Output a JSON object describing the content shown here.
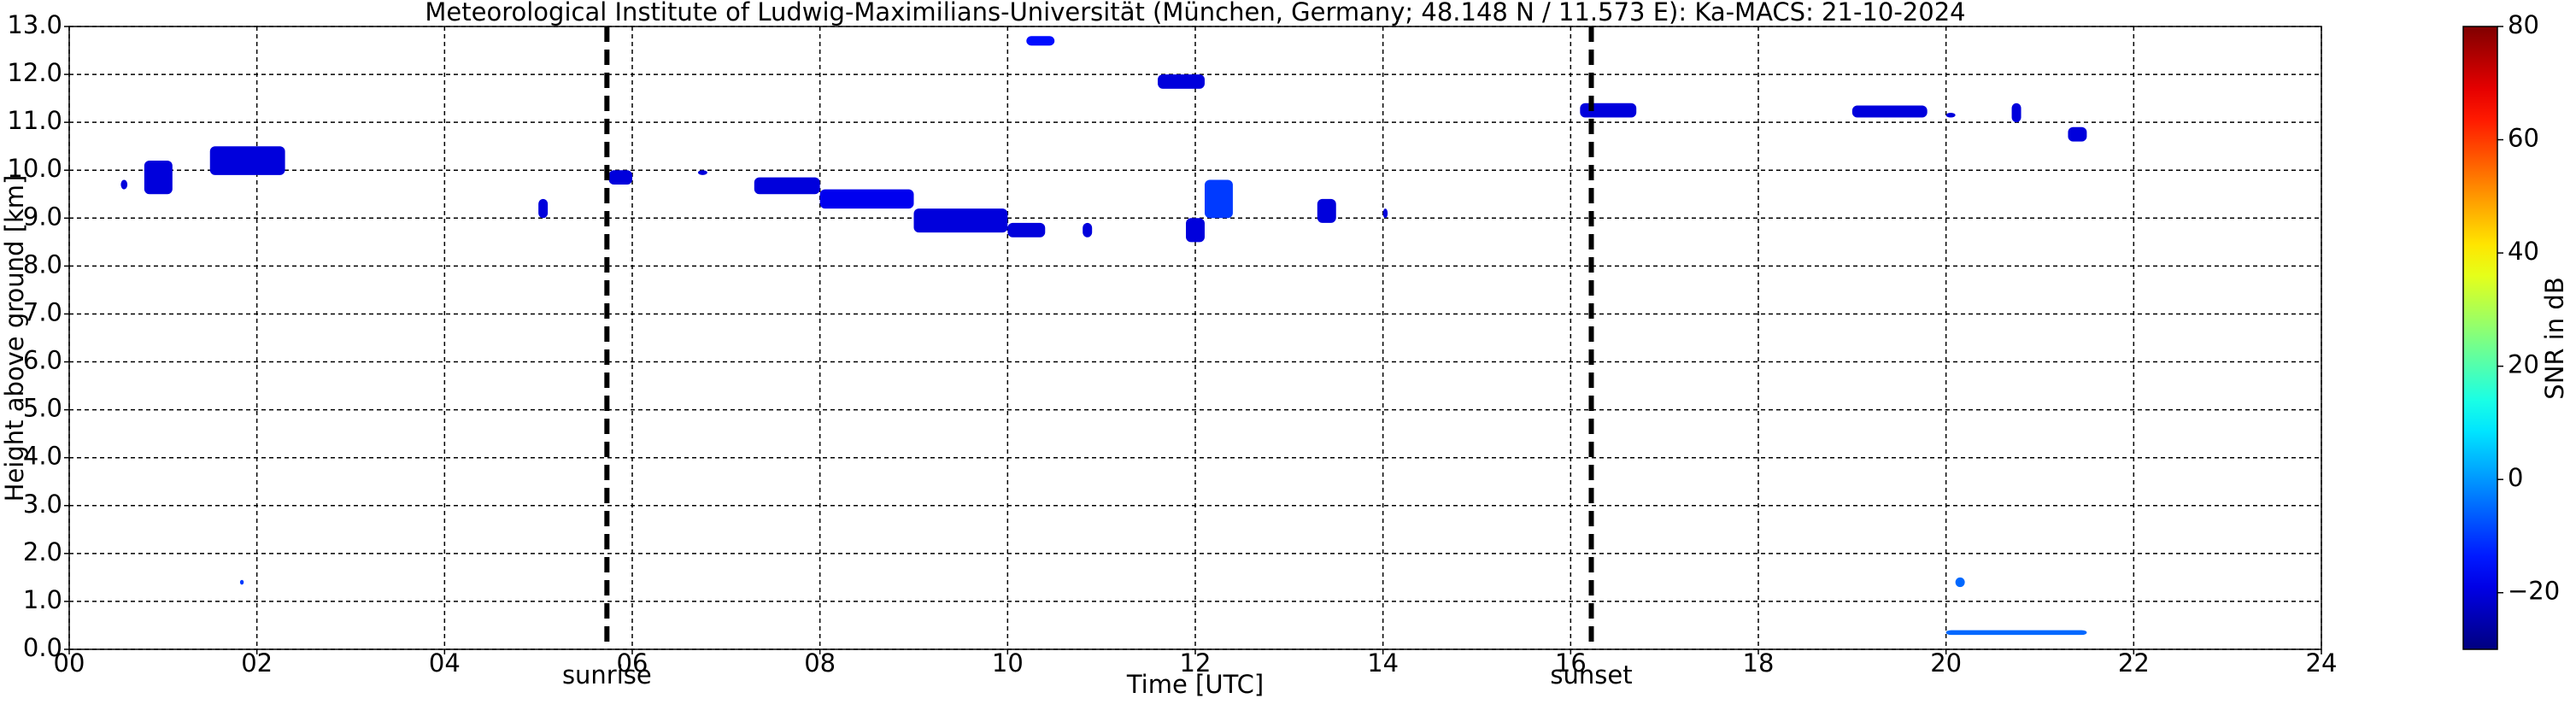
{
  "chart_data": {
    "type": "time-height",
    "title": "Meteorological Institute of Ludwig-Maximilians-Universität (München, Germany; 48.148 N / 11.573 E):    Ka-MACS: 21-10-2024",
    "x_label": "Time [UTC]",
    "y_label": "Height above ground [km]",
    "xlim": [
      0,
      24
    ],
    "xticks": [
      {
        "value": 0,
        "label": "00"
      },
      {
        "value": 2,
        "label": "02"
      },
      {
        "value": 4,
        "label": "04"
      },
      {
        "value": 6,
        "label": "06"
      },
      {
        "value": 8,
        "label": "08"
      },
      10,
      12,
      14,
      16,
      18,
      20,
      22,
      24
    ],
    "ylim": [
      0,
      13
    ],
    "yticks": [
      {
        "value": 0,
        "label": "0.0"
      },
      {
        "value": 1,
        "label": "1.0"
      },
      {
        "value": 2,
        "label": "2.0"
      },
      {
        "value": 3,
        "label": "3.0"
      },
      {
        "value": 4,
        "label": "4.0"
      },
      {
        "value": 5,
        "label": "5.0"
      },
      {
        "value": 6,
        "label": "6.0"
      },
      {
        "value": 7,
        "label": "7.0"
      },
      {
        "value": 8,
        "label": "8.0"
      },
      {
        "value": 9,
        "label": "9.0"
      },
      {
        "value": 10,
        "label": "10.0"
      },
      {
        "value": 11,
        "label": "11.0"
      },
      {
        "value": 12,
        "label": "12.0"
      },
      {
        "value": 13,
        "label": "13.0"
      }
    ],
    "grid": true,
    "colorbar": {
      "label": "SNR in dB",
      "clim": [
        -30,
        80
      ],
      "colormap": "jet",
      "ticks": [
        {
          "value": -20,
          "label": "−20"
        },
        0,
        20,
        40,
        60,
        80
      ]
    },
    "vlines": [
      {
        "x": 5.73,
        "label": "sunrise"
      },
      {
        "x": 16.22,
        "label": "sunset"
      }
    ],
    "echoes": [
      {
        "t0": 0.55,
        "t1": 0.62,
        "h0": 9.6,
        "h1": 9.8,
        "snr": -20
      },
      {
        "t0": 0.8,
        "t1": 1.1,
        "h0": 9.5,
        "h1": 10.2,
        "snr": -20
      },
      {
        "t0": 1.5,
        "t1": 2.3,
        "h0": 9.9,
        "h1": 10.5,
        "snr": -20
      },
      {
        "t0": 5.0,
        "t1": 5.1,
        "h0": 9.0,
        "h1": 9.4,
        "snr": -20
      },
      {
        "t0": 5.75,
        "t1": 6.0,
        "h0": 9.7,
        "h1": 10.0,
        "snr": -20
      },
      {
        "t0": 6.7,
        "t1": 6.8,
        "h0": 9.9,
        "h1": 10.0,
        "snr": -20
      },
      {
        "t0": 7.3,
        "t1": 8.0,
        "h0": 9.5,
        "h1": 9.85,
        "snr": -20
      },
      {
        "t0": 8.0,
        "t1": 9.0,
        "h0": 9.2,
        "h1": 9.6,
        "snr": -18
      },
      {
        "t0": 9.0,
        "t1": 10.0,
        "h0": 8.7,
        "h1": 9.2,
        "snr": -20
      },
      {
        "t0": 10.0,
        "t1": 10.4,
        "h0": 8.6,
        "h1": 8.9,
        "snr": -20
      },
      {
        "t0": 10.8,
        "t1": 10.9,
        "h0": 8.6,
        "h1": 8.9,
        "snr": -20
      },
      {
        "t0": 11.9,
        "t1": 12.1,
        "h0": 8.5,
        "h1": 9.0,
        "snr": -20
      },
      {
        "t0": 12.1,
        "t1": 12.4,
        "h0": 9.0,
        "h1": 9.8,
        "snr": -10
      },
      {
        "t0": 13.3,
        "t1": 13.5,
        "h0": 8.9,
        "h1": 9.4,
        "snr": -20
      },
      {
        "t0": 14.0,
        "t1": 14.05,
        "h0": 9.0,
        "h1": 9.2,
        "snr": -20
      },
      {
        "t0": 11.6,
        "t1": 12.1,
        "h0": 11.7,
        "h1": 12.0,
        "snr": -20
      },
      {
        "t0": 10.2,
        "t1": 10.5,
        "h0": 12.6,
        "h1": 12.8,
        "snr": -15
      },
      {
        "t0": 16.1,
        "t1": 16.7,
        "h0": 11.1,
        "h1": 11.4,
        "snr": -20
      },
      {
        "t0": 19.0,
        "t1": 19.8,
        "h0": 11.1,
        "h1": 11.35,
        "snr": -20
      },
      {
        "t0": 20.0,
        "t1": 20.1,
        "h0": 11.1,
        "h1": 11.2,
        "snr": -20
      },
      {
        "t0": 20.7,
        "t1": 20.8,
        "h0": 11.0,
        "h1": 11.4,
        "snr": -20
      },
      {
        "t0": 21.3,
        "t1": 21.5,
        "h0": 10.6,
        "h1": 10.9,
        "snr": -20
      },
      {
        "t0": 20.0,
        "t1": 21.5,
        "h0": 0.3,
        "h1": 0.4,
        "snr": -5
      },
      {
        "t0": 20.1,
        "t1": 20.2,
        "h0": 1.3,
        "h1": 1.5,
        "snr": -5
      },
      {
        "t0": 1.82,
        "t1": 1.86,
        "h0": 1.35,
        "h1": 1.45,
        "snr": -10
      }
    ]
  }
}
